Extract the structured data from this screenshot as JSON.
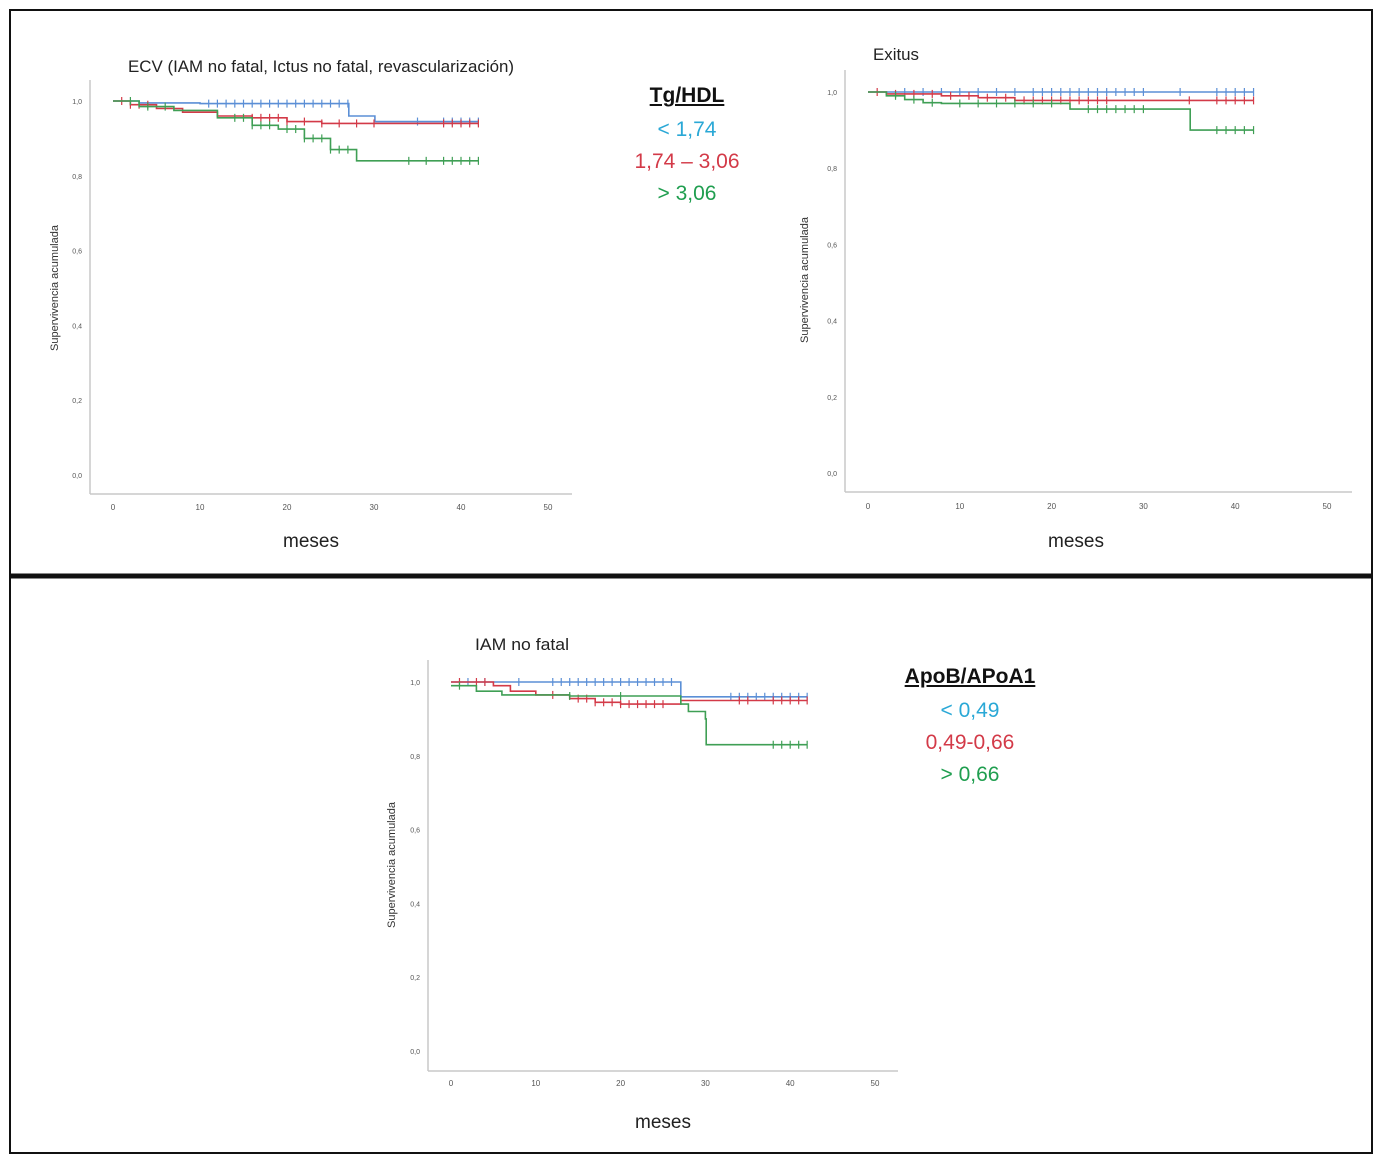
{
  "colors": {
    "blue": "#5b8fd6",
    "red": "#d8375a",
    "green": "#3f9f55",
    "legend_blue": "#2aa8d6",
    "legend_red": "#d33a48",
    "legend_green": "#1f9e4f"
  },
  "legend_top": {
    "title": "Tg/HDL",
    "items": [
      {
        "label": "< 1,74",
        "color": "#2aa8d6"
      },
      {
        "label": "1,74 – 3,06",
        "color": "#d33a48"
      },
      {
        "label": "> 3,06",
        "color": "#1f9e4f"
      }
    ]
  },
  "legend_bottom": {
    "title": "ApoB/APoA1",
    "items": [
      {
        "label": "< 0,49",
        "color": "#2aa8d6"
      },
      {
        "label": "0,49-0,66",
        "color": "#d33a48"
      },
      {
        "label": "> 0,66",
        "color": "#1f9e4f"
      }
    ]
  },
  "chart_data": [
    {
      "type": "line",
      "title": "ECV (IAM no fatal, Ictus no fatal, revascularización)",
      "xlabel": "meses",
      "ylabel": "Supervivencia acumulada",
      "xticks": [
        "0",
        "10",
        "20",
        "30",
        "40",
        "50"
      ],
      "yticks": [
        "0,0",
        "0,2",
        "0,4",
        "0,6",
        "0,8",
        "1,0"
      ],
      "xlim": [
        0,
        50
      ],
      "ylim": [
        0,
        1
      ],
      "series": [
        {
          "name": "< 1,74",
          "color": "#5b8fd6",
          "steps": [
            [
              0,
              1.0
            ],
            [
              3,
              0.995
            ],
            [
              10,
              0.993
            ],
            [
              27,
              0.993
            ],
            [
              27.1,
              0.96
            ],
            [
              30,
              0.96
            ],
            [
              30.1,
              0.945
            ],
            [
              42,
              0.945
            ]
          ],
          "censored": [
            11,
            12,
            13,
            14,
            15,
            16,
            17,
            18,
            19,
            20,
            21,
            22,
            23,
            24,
            25,
            26,
            27,
            35,
            38,
            39,
            40,
            41,
            42
          ]
        },
        {
          "name": "1,74 – 3,06",
          "color": "#d33a48",
          "steps": [
            [
              0,
              1.0
            ],
            [
              2,
              0.99
            ],
            [
              5,
              0.98
            ],
            [
              8,
              0.97
            ],
            [
              12,
              0.96
            ],
            [
              16,
              0.955
            ],
            [
              20,
              0.945
            ],
            [
              24,
              0.94
            ],
            [
              42,
              0.94
            ]
          ],
          "censored": [
            1,
            2,
            3,
            4,
            16,
            17,
            18,
            19,
            20,
            22,
            24,
            26,
            28,
            30,
            38,
            39,
            40,
            41,
            42
          ]
        },
        {
          "name": "> 3,06",
          "color": "#3f9f55",
          "steps": [
            [
              0,
              1.0
            ],
            [
              3,
              0.985
            ],
            [
              7,
              0.975
            ],
            [
              12,
              0.955
            ],
            [
              16,
              0.935
            ],
            [
              19,
              0.925
            ],
            [
              22,
              0.9
            ],
            [
              25,
              0.87
            ],
            [
              28,
              0.84
            ],
            [
              42,
              0.84
            ]
          ],
          "censored": [
            2,
            4,
            6,
            14,
            15,
            16,
            17,
            18,
            20,
            21,
            22,
            23,
            24,
            25,
            26,
            27,
            34,
            36,
            38,
            39,
            40,
            41,
            42
          ]
        }
      ]
    },
    {
      "type": "line",
      "title": "Exitus",
      "xlabel": "meses",
      "ylabel": "Supervivencia acumulada",
      "xticks": [
        "0",
        "10",
        "20",
        "30",
        "40",
        "50"
      ],
      "yticks": [
        "0,0",
        "0,2",
        "0,4",
        "0,6",
        "0,8",
        "1,0"
      ],
      "xlim": [
        0,
        50
      ],
      "ylim": [
        0,
        1
      ],
      "series": [
        {
          "name": "< 1,74",
          "color": "#5b8fd6",
          "steps": [
            [
              0,
              1.0
            ],
            [
              42,
              1.0
            ]
          ],
          "censored": [
            4,
            6,
            8,
            10,
            12,
            14,
            16,
            18,
            19,
            20,
            21,
            22,
            23,
            24,
            25,
            26,
            27,
            28,
            29,
            30,
            34,
            38,
            39,
            40,
            41,
            42
          ]
        },
        {
          "name": "1,74 – 3,06",
          "color": "#d33a48",
          "steps": [
            [
              0,
              1.0
            ],
            [
              2,
              0.995
            ],
            [
              8,
              0.99
            ],
            [
              12,
              0.985
            ],
            [
              16,
              0.978
            ],
            [
              42,
              0.978
            ]
          ],
          "censored": [
            1,
            3,
            5,
            7,
            9,
            11,
            13,
            15,
            17,
            18,
            19,
            20,
            21,
            22,
            23,
            24,
            25,
            26,
            35,
            38,
            39,
            40,
            41,
            42
          ]
        },
        {
          "name": "> 3,06",
          "color": "#3f9f55",
          "steps": [
            [
              0,
              1.0
            ],
            [
              2,
              0.99
            ],
            [
              4,
              0.98
            ],
            [
              6,
              0.972
            ],
            [
              8,
              0.97
            ],
            [
              20,
              0.97
            ],
            [
              22,
              0.955
            ],
            [
              35,
              0.955
            ],
            [
              35.1,
              0.9
            ],
            [
              42,
              0.9
            ]
          ],
          "censored": [
            3,
            5,
            7,
            10,
            12,
            14,
            16,
            18,
            20,
            24,
            25,
            26,
            27,
            28,
            29,
            30,
            38,
            39,
            40,
            41,
            42
          ]
        }
      ]
    },
    {
      "type": "line",
      "title": "IAM no fatal",
      "xlabel": "meses",
      "ylabel": "Supervivencia acumulada",
      "xticks": [
        "0",
        "10",
        "20",
        "30",
        "40",
        "50"
      ],
      "yticks": [
        "0,0",
        "0,2",
        "0,4",
        "0,6",
        "0,8",
        "1,0"
      ],
      "xlim": [
        0,
        50
      ],
      "ylim": [
        0,
        1
      ],
      "series": [
        {
          "name": "< 0,49",
          "color": "#5b8fd6",
          "steps": [
            [
              0,
              1.0
            ],
            [
              27,
              1.0
            ],
            [
              27.1,
              0.96
            ],
            [
              42,
              0.96
            ]
          ],
          "censored": [
            2,
            4,
            8,
            12,
            13,
            14,
            15,
            16,
            17,
            18,
            19,
            20,
            21,
            22,
            23,
            24,
            25,
            26,
            33,
            34,
            35,
            36,
            37,
            38,
            39,
            40,
            41,
            42
          ]
        },
        {
          "name": "0,49-0,66",
          "color": "#d33a48",
          "steps": [
            [
              0,
              1.0
            ],
            [
              5,
              0.99
            ],
            [
              7,
              0.975
            ],
            [
              10,
              0.965
            ],
            [
              14,
              0.955
            ],
            [
              17,
              0.945
            ],
            [
              20,
              0.94
            ],
            [
              27,
              0.94
            ],
            [
              27.1,
              0.95
            ],
            [
              42,
              0.95
            ]
          ],
          "censored": [
            1,
            3,
            4,
            12,
            15,
            16,
            17,
            18,
            19,
            20,
            21,
            22,
            23,
            24,
            25,
            34,
            35,
            38,
            39,
            40,
            41,
            42
          ]
        },
        {
          "name": "> 0,66",
          "color": "#3f9f55",
          "steps": [
            [
              0,
              0.99
            ],
            [
              3,
              0.975
            ],
            [
              6,
              0.965
            ],
            [
              14,
              0.962
            ],
            [
              27,
              0.962
            ],
            [
              27.1,
              0.94
            ],
            [
              28,
              0.92
            ],
            [
              30,
              0.9
            ],
            [
              30.1,
              0.83
            ],
            [
              42,
              0.83
            ]
          ],
          "censored": [
            1,
            14,
            20,
            38,
            39,
            40,
            41,
            42
          ]
        }
      ]
    }
  ]
}
